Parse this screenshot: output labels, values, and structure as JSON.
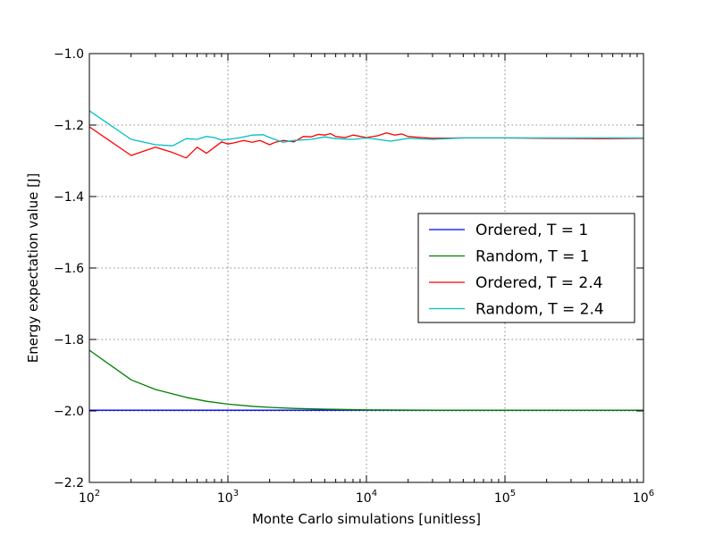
{
  "chart_data": {
    "type": "line",
    "title": "",
    "xlabel": "Monte Carlo simulations [unitless]",
    "ylabel": "Energy expectation value [J]",
    "xscale": "log",
    "xlim": [
      100,
      1000000
    ],
    "ylim": [
      -2.2,
      -1.0
    ],
    "xtick_labels": [
      {
        "base": "10",
        "exp": "2"
      },
      {
        "base": "10",
        "exp": "3"
      },
      {
        "base": "10",
        "exp": "4"
      },
      {
        "base": "10",
        "exp": "5"
      },
      {
        "base": "10",
        "exp": "6"
      }
    ],
    "yticks": [
      -1.0,
      -1.2,
      -1.4,
      -1.6,
      -1.8,
      -2.0,
      -2.2
    ],
    "ytick_labels": [
      "−1.0",
      "−1.2",
      "−1.4",
      "−1.6",
      "−1.8",
      "−2.0",
      "−2.2"
    ],
    "grid": true,
    "legend_position": "right-center",
    "series": [
      {
        "name": "Ordered, T = 1",
        "color": "#0000ff",
        "x": [
          100,
          1000,
          10000,
          100000,
          1000000
        ],
        "y": [
          -1.998,
          -1.998,
          -1.998,
          -1.998,
          -1.998
        ]
      },
      {
        "name": "Random, T = 1",
        "color": "#008000",
        "x": [
          100,
          200,
          300,
          500,
          700,
          1000,
          1500,
          2000,
          3000,
          5000,
          10000,
          30000,
          100000,
          1000000
        ],
        "y": [
          -1.83,
          -1.913,
          -1.94,
          -1.962,
          -1.973,
          -1.981,
          -1.987,
          -1.99,
          -1.993,
          -1.995,
          -1.997,
          -1.998,
          -1.998,
          -1.998
        ]
      },
      {
        "name": "Ordered, T = 2.4",
        "color": "#ff0000",
        "x": [
          100,
          200,
          300,
          400,
          500,
          600,
          700,
          800,
          900,
          1000,
          1100,
          1300,
          1500,
          1700,
          2000,
          2200,
          2500,
          3000,
          3500,
          4000,
          4500,
          5000,
          5500,
          6000,
          7000,
          8000,
          10000,
          12000,
          14000,
          16000,
          18000,
          20000,
          25000,
          30000,
          50000,
          100000,
          200000,
          500000,
          1000000
        ],
        "y": [
          -1.205,
          -1.285,
          -1.262,
          -1.277,
          -1.292,
          -1.262,
          -1.279,
          -1.262,
          -1.247,
          -1.253,
          -1.25,
          -1.243,
          -1.248,
          -1.243,
          -1.255,
          -1.248,
          -1.243,
          -1.247,
          -1.232,
          -1.233,
          -1.226,
          -1.228,
          -1.224,
          -1.232,
          -1.235,
          -1.228,
          -1.235,
          -1.23,
          -1.222,
          -1.228,
          -1.225,
          -1.232,
          -1.235,
          -1.237,
          -1.236,
          -1.236,
          -1.237,
          -1.238,
          -1.237
        ]
      },
      {
        "name": "Random, T = 2.4",
        "color": "#00bfbf",
        "x": [
          100,
          200,
          300,
          400,
          500,
          600,
          700,
          800,
          900,
          1000,
          1200,
          1500,
          1800,
          2000,
          2500,
          3000,
          4000,
          5000,
          6000,
          8000,
          10000,
          15000,
          20000,
          30000,
          50000,
          100000,
          1000000
        ],
        "y": [
          -1.16,
          -1.24,
          -1.255,
          -1.258,
          -1.238,
          -1.24,
          -1.232,
          -1.235,
          -1.242,
          -1.24,
          -1.236,
          -1.228,
          -1.227,
          -1.235,
          -1.248,
          -1.243,
          -1.24,
          -1.233,
          -1.238,
          -1.24,
          -1.236,
          -1.245,
          -1.237,
          -1.24,
          -1.236,
          -1.236,
          -1.236
        ]
      }
    ]
  }
}
